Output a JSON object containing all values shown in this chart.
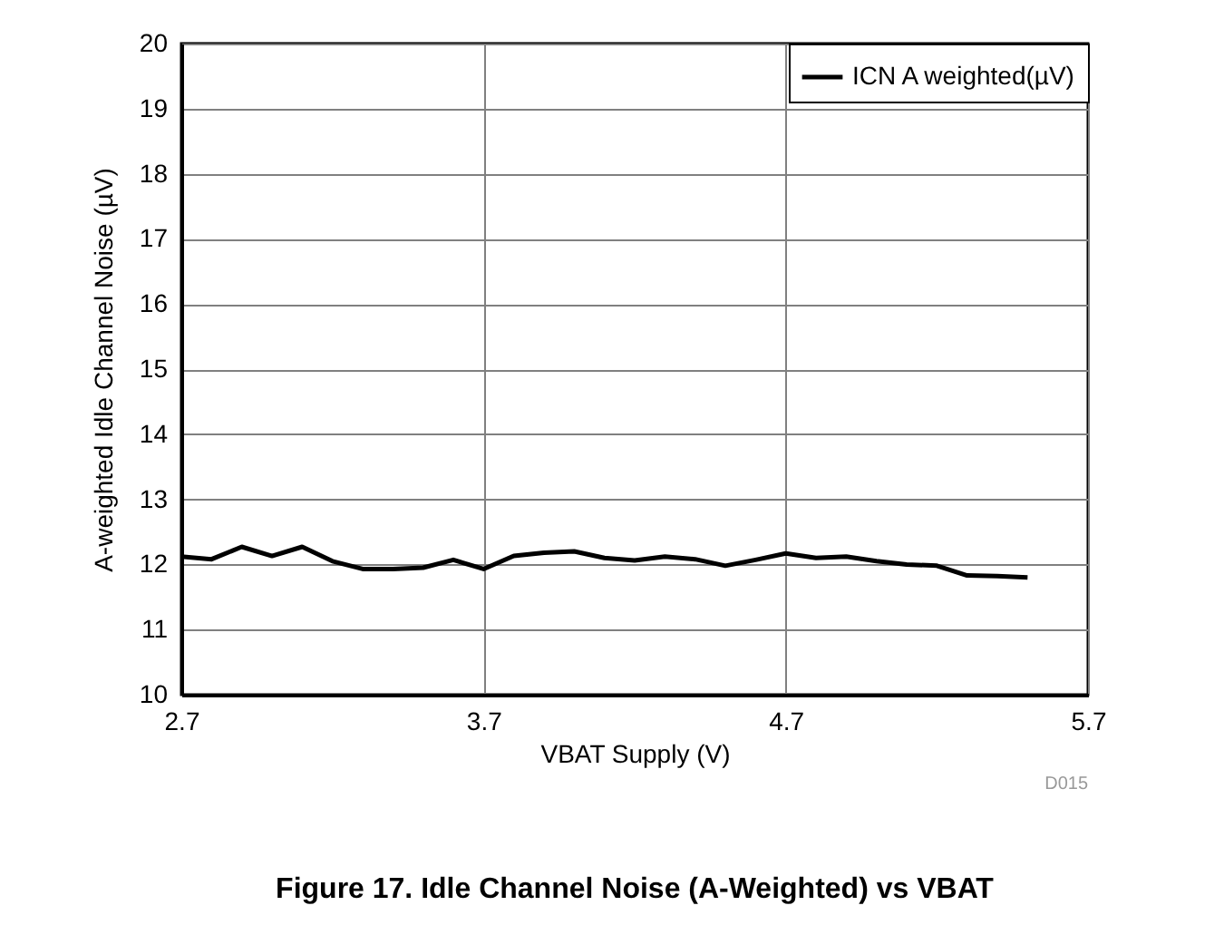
{
  "chart_data": {
    "type": "line",
    "title": "Figure 17. Idle Channel Noise (A-Weighted) vs VBAT",
    "xlabel": "VBAT Supply (V)",
    "ylabel": "A-weighted Idle Channel Noise (µV)",
    "annotations": [
      "D015"
    ],
    "x": [
      2.7,
      2.8,
      2.9,
      3.0,
      3.1,
      3.2,
      3.3,
      3.4,
      3.5,
      3.6,
      3.7,
      3.8,
      3.9,
      4.0,
      4.1,
      4.2,
      4.3,
      4.4,
      4.5,
      4.6,
      4.7,
      4.8,
      4.9,
      5.0,
      5.1,
      5.2,
      5.3,
      5.4,
      5.5
    ],
    "series": [
      {
        "name": "ICN A weighted(µV)",
        "color": "#000000",
        "values": [
          12.12,
          12.08,
          12.27,
          12.13,
          12.27,
          12.05,
          11.93,
          11.93,
          11.95,
          12.07,
          11.93,
          12.13,
          12.18,
          12.2,
          12.1,
          12.06,
          12.12,
          12.08,
          11.98,
          12.07,
          12.17,
          12.1,
          12.12,
          12.05,
          12.0,
          11.98,
          11.83,
          11.82,
          11.8
        ]
      }
    ],
    "xlim": [
      2.7,
      5.7
    ],
    "xticks": [
      2.7,
      3.7,
      4.7,
      5.7
    ],
    "ylim": [
      10,
      20
    ],
    "yticks": [
      10,
      11,
      12,
      13,
      14,
      15,
      16,
      17,
      18,
      19,
      20
    ],
    "grid": true,
    "legend": "top right",
    "marker": "none",
    "line_style": "solid"
  }
}
